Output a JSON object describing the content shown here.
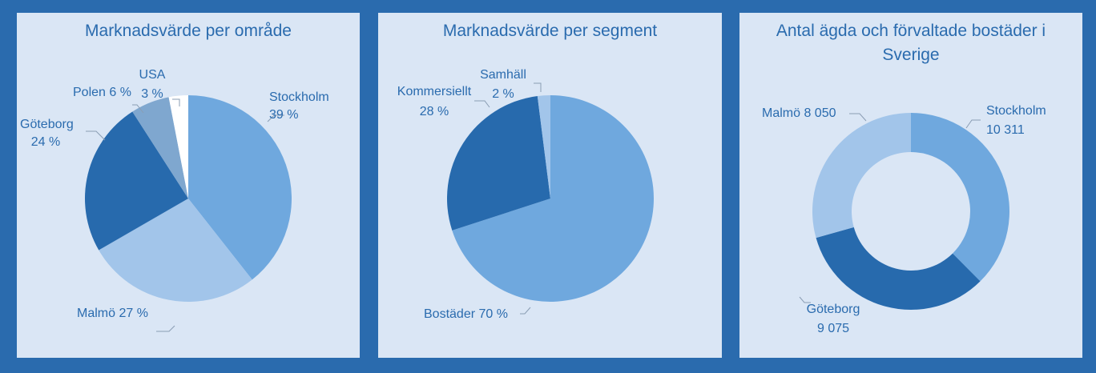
{
  "colors": {
    "background": "#2a6bae",
    "panel": "#dae6f5",
    "text": "#2a6bae",
    "mid_blue": "#6fa8de",
    "dark_blue": "#276aad",
    "light_blue": "#a2c5ea",
    "gray_blue": "#7fa7cf",
    "white": "#ffffff"
  },
  "chart_data": [
    {
      "type": "pie",
      "title": "Marknadsvärde per område",
      "categories": [
        "Stockholm",
        "Malmö",
        "Göteborg",
        "Polen",
        "USA"
      ],
      "values": [
        39,
        27,
        24,
        6,
        3
      ],
      "labels": {
        "stockholm_name": "Stockholm",
        "stockholm_pct": "39 %",
        "malmo": "Malmö 27 %",
        "goteborg_name": "Göteborg",
        "goteborg_pct": "24 %",
        "polen": "Polen 6 %",
        "usa_name": "USA",
        "usa_pct": "3 %"
      },
      "colors": [
        "#6fa8de",
        "#a2c5ea",
        "#276aad",
        "#7fa7cf",
        "#ffffff"
      ]
    },
    {
      "type": "pie",
      "title": "Marknadsvärde per segment",
      "categories": [
        "Bostäder",
        "Kommersiellt",
        "Samhäll"
      ],
      "values": [
        70,
        28,
        2
      ],
      "labels": {
        "bostader": "Bostäder 70 %",
        "kommersiellt_name": "Kommersiellt",
        "kommersiellt_pct": "28 %",
        "samhall_name": "Samhäll",
        "samhall_pct": "2 %"
      },
      "colors": [
        "#6fa8de",
        "#276aad",
        "#a2c5ea"
      ]
    },
    {
      "type": "pie",
      "title": "Antal ägda och förvaltade bostäder i Sverige",
      "categories": [
        "Stockholm",
        "Göteborg",
        "Malmö"
      ],
      "values": [
        10311,
        9075,
        8050
      ],
      "labels": {
        "stockholm_name": "Stockholm",
        "stockholm_val": "10 311",
        "goteborg_name": "Göteborg",
        "goteborg_val": "9 075",
        "malmo": "Malmö 8 050"
      },
      "colors": [
        "#6fa8de",
        "#276aad",
        "#a2c5ea"
      ]
    }
  ]
}
